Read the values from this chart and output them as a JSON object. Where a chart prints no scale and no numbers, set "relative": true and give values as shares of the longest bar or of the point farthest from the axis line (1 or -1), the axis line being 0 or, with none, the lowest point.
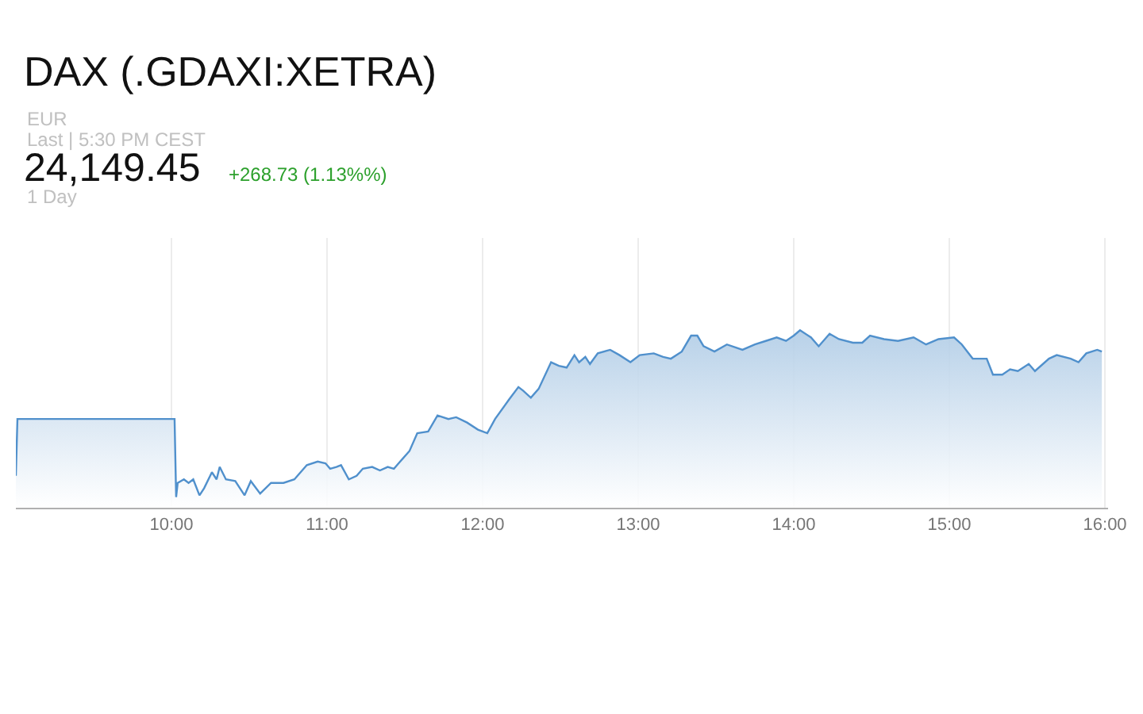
{
  "chart_data": {
    "type": "area",
    "title": "DAX (.GDAXI:XETRA)",
    "annotations": [
      "EUR",
      "Last | 5:30 PM CEST",
      "24,149.45",
      "+268.73 (1.13%%)",
      "1 Day"
    ],
    "relative": true,
    "grid": "x",
    "xlim": [
      9,
      16.02
    ],
    "xticks": [
      {
        "value": 10,
        "label": "10:00"
      },
      {
        "value": 11,
        "label": "11:00"
      },
      {
        "value": 12,
        "label": "12:00"
      },
      {
        "value": 13,
        "label": "13:00"
      },
      {
        "value": 14,
        "label": "14:00"
      },
      {
        "value": 15,
        "label": "15:00"
      },
      {
        "value": 16,
        "label": "16:00"
      }
    ],
    "series": [
      {
        "color": "#5090cc",
        "x": [
          9.0,
          9.01,
          10.02,
          10.03,
          10.04,
          10.08,
          10.11,
          10.14,
          10.18,
          10.21,
          10.26,
          10.29,
          10.31,
          10.35,
          10.41,
          10.47,
          10.51,
          10.57,
          10.64,
          10.72,
          10.79,
          10.87,
          10.94,
          10.99,
          11.02,
          11.06,
          11.09,
          11.14,
          11.19,
          11.23,
          11.29,
          11.34,
          11.39,
          11.43,
          11.46,
          11.53,
          11.58,
          11.65,
          11.71,
          11.78,
          11.83,
          11.9,
          11.97,
          12.03,
          12.08,
          12.17,
          12.23,
          12.26,
          12.31,
          12.36,
          12.44,
          12.49,
          12.54,
          12.59,
          12.62,
          12.66,
          12.69,
          12.74,
          12.82,
          12.88,
          12.95,
          13.01,
          13.1,
          13.16,
          13.21,
          13.28,
          13.34,
          13.38,
          13.42,
          13.49,
          13.57,
          13.67,
          13.75,
          13.82,
          13.89,
          13.95,
          14.0,
          14.04,
          14.11,
          14.16,
          14.23,
          14.29,
          14.38,
          14.44,
          14.49,
          14.58,
          14.67,
          14.77,
          14.85,
          14.93,
          15.03,
          15.08,
          15.15,
          15.24,
          15.28,
          15.34,
          15.39,
          15.44,
          15.51,
          15.55,
          15.64,
          15.69,
          15.78,
          15.83,
          15.88,
          15.95,
          15.98
        ],
        "values": [
          0.18,
          0.5,
          0.5,
          0.06,
          0.14,
          0.16,
          0.14,
          0.16,
          0.07,
          0.11,
          0.2,
          0.16,
          0.23,
          0.16,
          0.15,
          0.07,
          0.15,
          0.08,
          0.14,
          0.14,
          0.16,
          0.24,
          0.26,
          0.25,
          0.22,
          0.23,
          0.24,
          0.16,
          0.18,
          0.22,
          0.23,
          0.21,
          0.23,
          0.22,
          0.25,
          0.32,
          0.42,
          0.43,
          0.52,
          0.5,
          0.51,
          0.48,
          0.44,
          0.42,
          0.5,
          0.61,
          0.68,
          0.66,
          0.62,
          0.67,
          0.82,
          0.8,
          0.79,
          0.86,
          0.82,
          0.85,
          0.81,
          0.87,
          0.89,
          0.86,
          0.82,
          0.86,
          0.87,
          0.85,
          0.84,
          0.88,
          0.97,
          0.97,
          0.91,
          0.88,
          0.92,
          0.89,
          0.92,
          0.94,
          0.96,
          0.94,
          0.97,
          1.0,
          0.96,
          0.91,
          0.98,
          0.95,
          0.93,
          0.93,
          0.97,
          0.95,
          0.94,
          0.96,
          0.92,
          0.95,
          0.96,
          0.92,
          0.84,
          0.84,
          0.75,
          0.75,
          0.78,
          0.77,
          0.81,
          0.77,
          0.84,
          0.86,
          0.84,
          0.82,
          0.87,
          0.89,
          0.88
        ]
      }
    ]
  }
}
